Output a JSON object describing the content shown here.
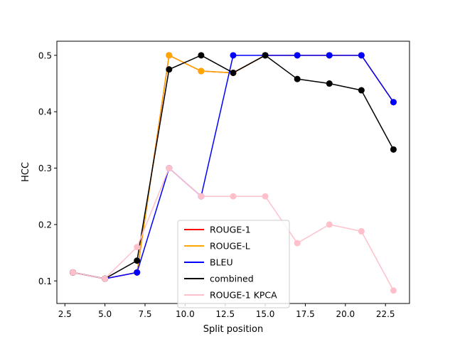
{
  "chart_data": {
    "type": "line",
    "title": "",
    "xlabel": "Split position",
    "ylabel": "HCC",
    "xlim": [
      2.0,
      24.0
    ],
    "ylim": [
      0.06,
      0.525
    ],
    "xticks": [
      2.5,
      5.0,
      7.5,
      10.0,
      12.5,
      15.0,
      17.5,
      20.0,
      22.5
    ],
    "xtick_labels": [
      "2.5",
      "5.0",
      "7.5",
      "10.0",
      "12.5",
      "15.0",
      "17.5",
      "20.0",
      "22.5"
    ],
    "yticks": [
      0.1,
      0.2,
      0.3,
      0.4,
      0.5
    ],
    "ytick_labels": [
      "0.1",
      "0.2",
      "0.3",
      "0.4",
      "0.5"
    ],
    "grid": false,
    "legend": "lower-center",
    "x": [
      3,
      5,
      7,
      9,
      11,
      13,
      15,
      17,
      19,
      21,
      23
    ],
    "series": [
      {
        "name": "ROUGE-1",
        "color": "#ff0000",
        "values": [
          0.115,
          0.104,
          0.115,
          0.5,
          0.472,
          0.469,
          0.5,
          0.5,
          0.5,
          0.5,
          0.417
        ]
      },
      {
        "name": "ROUGE-L",
        "color": "#ffa500",
        "values": [
          0.115,
          0.104,
          0.115,
          0.5,
          0.472,
          0.469,
          0.5,
          0.5,
          0.5,
          0.5,
          0.417
        ]
      },
      {
        "name": "BLEU",
        "color": "#0000ff",
        "values": [
          0.115,
          0.104,
          0.115,
          0.3,
          0.25,
          0.5,
          0.5,
          0.5,
          0.5,
          0.5,
          0.417
        ]
      },
      {
        "name": "combined",
        "color": "#000000",
        "values": [
          0.115,
          0.104,
          0.136,
          0.475,
          0.5,
          0.469,
          0.5,
          0.458,
          0.45,
          0.438,
          0.333
        ]
      },
      {
        "name": "ROUGE-1 KPCA",
        "color": "#ffc0cb",
        "values": [
          0.115,
          0.104,
          0.16,
          0.3,
          0.25,
          0.25,
          0.25,
          0.167,
          0.2,
          0.188,
          0.083
        ]
      }
    ]
  }
}
